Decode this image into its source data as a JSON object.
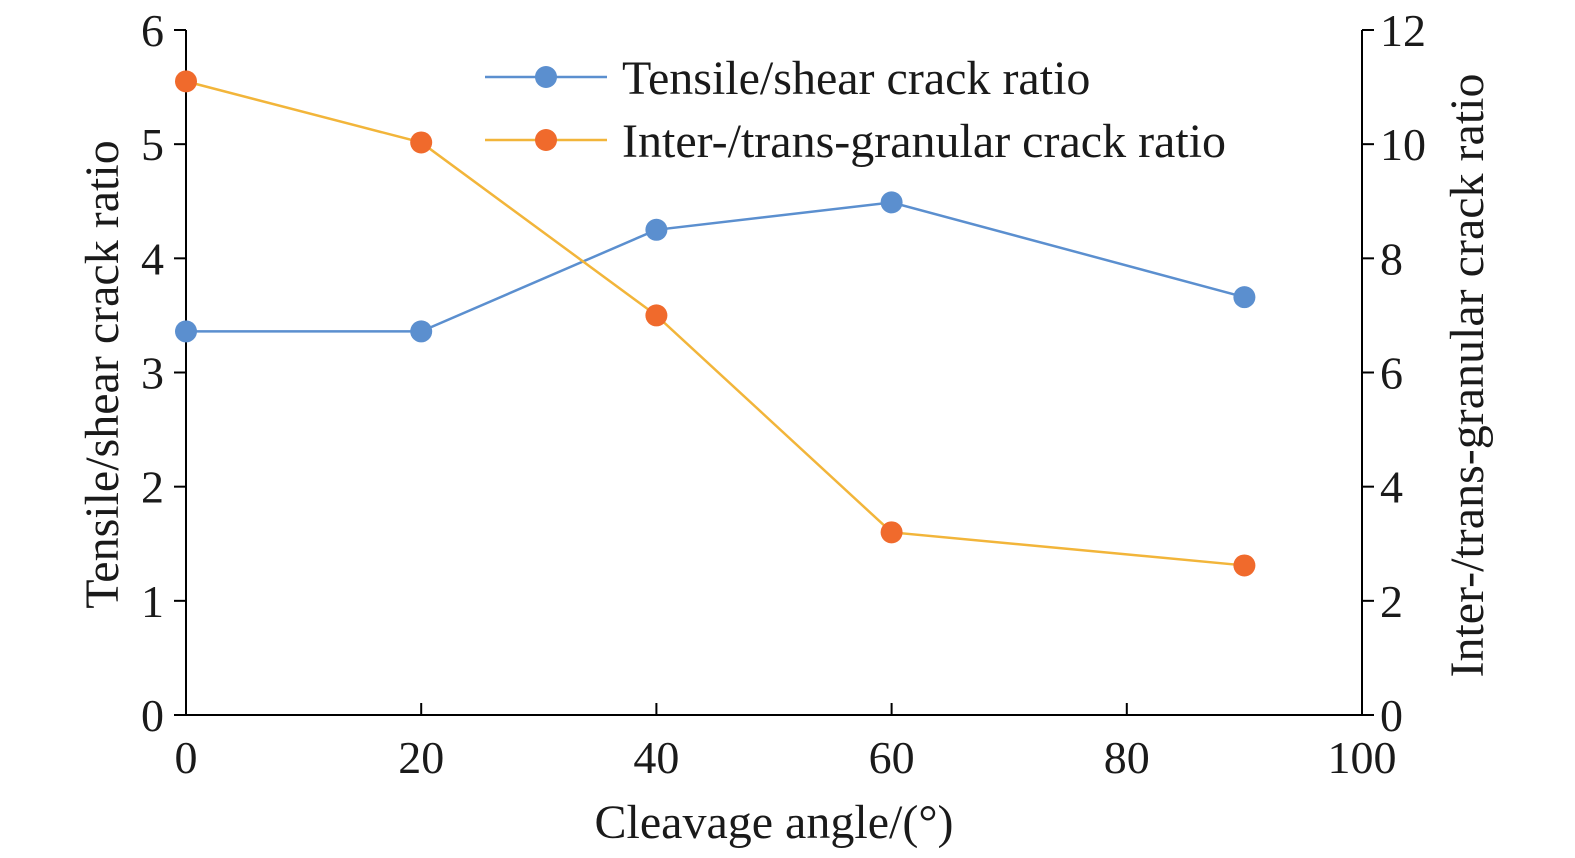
{
  "chart_data": {
    "type": "line",
    "x": [
      0,
      20,
      40,
      60,
      90
    ],
    "xlabel": "Cleavage angle/(°)",
    "xlim": [
      0,
      100
    ],
    "xticks": [
      "0",
      "20",
      "40",
      "60",
      "80",
      "100"
    ],
    "ylabel_left": "Tensile/shear crack ratio",
    "ylim_left": [
      0,
      6
    ],
    "yticks_left": [
      "0",
      "1",
      "2",
      "3",
      "4",
      "5",
      "6"
    ],
    "ylabel_right": "Inter-/trans-granular crack ratio",
    "ylim_right": [
      0,
      12
    ],
    "yticks_right": [
      "0",
      "2",
      "4",
      "6",
      "8",
      "10",
      "12"
    ],
    "grid": false,
    "legend_position": "top-center",
    "series": [
      {
        "name": "Tensile/shear crack ratio",
        "axis": "left",
        "line_color": "#5b8fcf",
        "marker_color": "#5b8fcf",
        "values": [
          3.36,
          3.36,
          4.25,
          4.49,
          3.66
        ]
      },
      {
        "name": "Inter-/trans-granular crack ratio",
        "axis": "right",
        "line_color": "#f2b53a",
        "marker_color": "#f06a2c",
        "values": [
          11.1,
          10.03,
          7.0,
          3.2,
          2.62
        ]
      }
    ]
  }
}
